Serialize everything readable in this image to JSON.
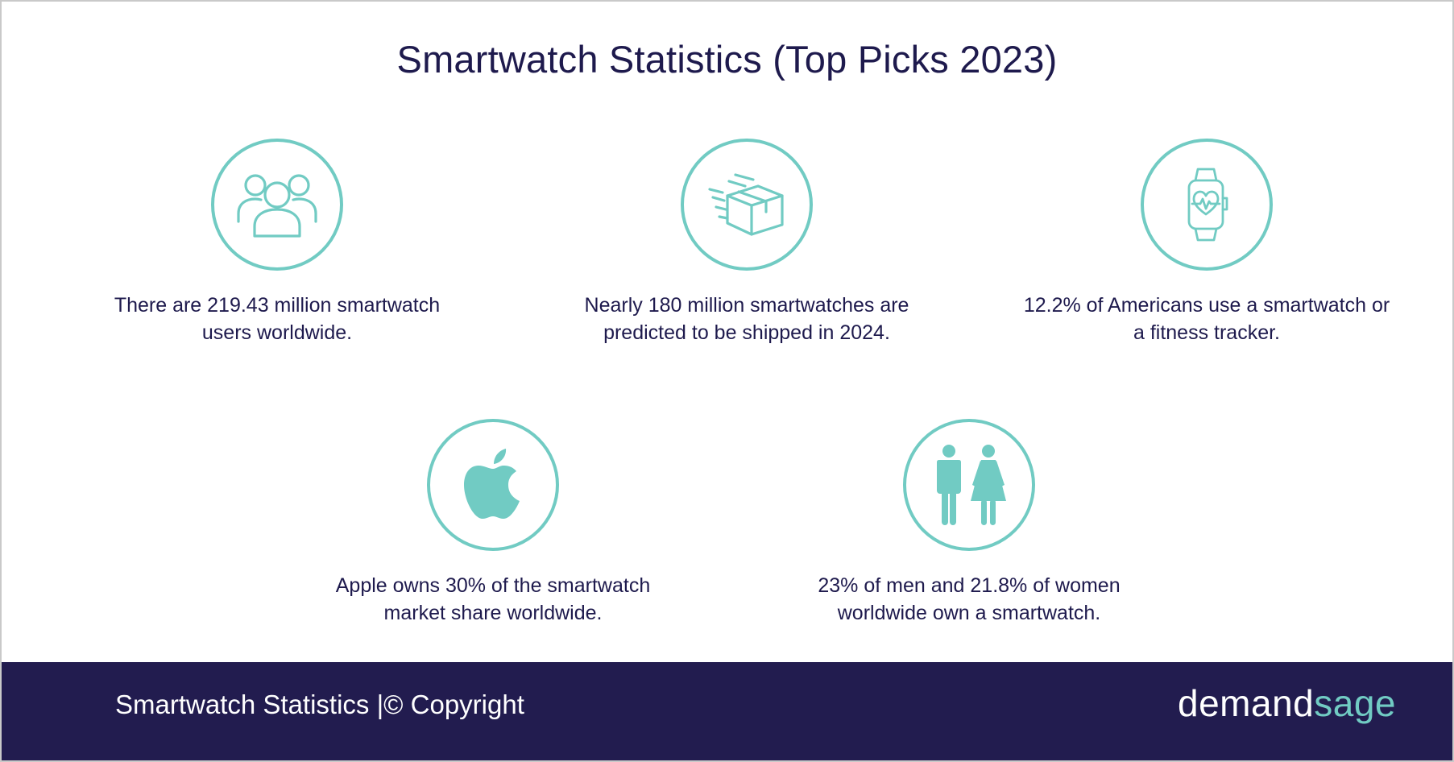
{
  "title": "Smartwatch Statistics (Top Picks 2023)",
  "accent_color": "#71cbc3",
  "text_color": "#1e1a4d",
  "footer_color": "#221c4f",
  "stats": [
    {
      "icon": "users-icon",
      "lines": [
        "There are 219.43 million smartwatch",
        "users worldwide."
      ]
    },
    {
      "icon": "shipping-box-icon",
      "lines": [
        "Nearly 180 million smartwatches are",
        "predicted to be shipped in 2024."
      ]
    },
    {
      "icon": "smartwatch-heartbeat-icon",
      "lines": [
        "12.2% of Americans use a smartwatch or",
        "a fitness tracker."
      ]
    },
    {
      "icon": "apple-logo-icon",
      "lines": [
        "Apple owns 30% of the smartwatch",
        "market share worldwide."
      ]
    },
    {
      "icon": "man-woman-icon",
      "lines": [
        "23% of men and 21.8% of women",
        "worldwide own a smartwatch."
      ]
    }
  ],
  "footer": {
    "left_text": "Smartwatch Statistics  |© Copyright",
    "brand_part1": "demand",
    "brand_part2": "sage"
  }
}
